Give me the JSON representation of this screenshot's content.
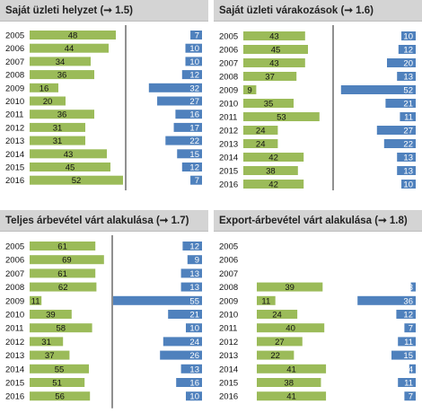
{
  "panels": [
    {
      "id": "p1",
      "title": "Saját üzleti helyzet",
      "ref": "(➞ 1.5)",
      "chart_data": {
        "type": "bar",
        "categories": [
          "2005",
          "2006",
          "2007",
          "2008",
          "2009",
          "2010",
          "2011",
          "2012",
          "2013",
          "2014",
          "2015",
          "2016"
        ],
        "series": [
          {
            "values": [
              48,
              44,
              34,
              36,
              16,
              20,
              36,
              31,
              31,
              43,
              45,
              52
            ],
            "color": "#9bbb59",
            "direction": "right"
          },
          {
            "values": [
              7,
              10,
              10,
              12,
              32,
              27,
              16,
              17,
              22,
              15,
              12,
              7
            ],
            "color": "#4f81bd",
            "direction": "left"
          }
        ],
        "divider": true
      }
    },
    {
      "id": "p2",
      "title": "Saját üzleti várakozások",
      "ref": "(➞ 1.6)",
      "chart_data": {
        "type": "bar",
        "categories": [
          "2005",
          "2006",
          "2007",
          "2008",
          "2009",
          "2010",
          "2011",
          "2012",
          "2013",
          "2014",
          "2015",
          "2016"
        ],
        "series": [
          {
            "values": [
              43,
              45,
              43,
              37,
              9,
              35,
              53,
              24,
              24,
              42,
              38,
              42
            ],
            "color": "#9bbb59",
            "direction": "right"
          },
          {
            "values": [
              10,
              12,
              20,
              13,
              52,
              21,
              11,
              27,
              22,
              13,
              13,
              10
            ],
            "color": "#4f81bd",
            "direction": "left"
          }
        ],
        "divider": true
      }
    },
    {
      "id": "p3",
      "title": "Teljes árbevétel várt alakulása",
      "ref": "(➞ 1.7)",
      "chart_data": {
        "type": "bar",
        "categories": [
          "2005",
          "2006",
          "2007",
          "2008",
          "2009",
          "2010",
          "2011",
          "2012",
          "2013",
          "2014",
          "2015",
          "2016"
        ],
        "series": [
          {
            "values": [
              61,
              69,
              61,
              62,
              11,
              39,
              58,
              31,
              37,
              55,
              51,
              56
            ],
            "color": "#9bbb59",
            "direction": "right"
          },
          {
            "values": [
              12,
              9,
              13,
              13,
              55,
              21,
              10,
              24,
              26,
              13,
              16,
              10
            ],
            "color": "#4f81bd",
            "direction": "left"
          }
        ],
        "divider": true
      }
    },
    {
      "id": "p4",
      "title": "Export-árbevétel várt alakulása",
      "ref": "(➞ 1.8)",
      "chart_data": {
        "type": "bar",
        "categories": [
          "2005",
          "2006",
          "2007",
          "2008",
          "2009",
          "2010",
          "2011",
          "2012",
          "2013",
          "2014",
          "2015",
          "2016"
        ],
        "series": [
          {
            "values": [
              null,
              null,
              null,
              39,
              11,
              24,
              40,
              27,
              22,
              41,
              38,
              41
            ],
            "color": "#9bbb59",
            "direction": "right"
          },
          {
            "values": [
              null,
              null,
              null,
              3,
              36,
              12,
              7,
              11,
              15,
              4,
              11,
              7
            ],
            "color": "#4f81bd",
            "direction": "left"
          }
        ],
        "divider": false
      }
    }
  ]
}
